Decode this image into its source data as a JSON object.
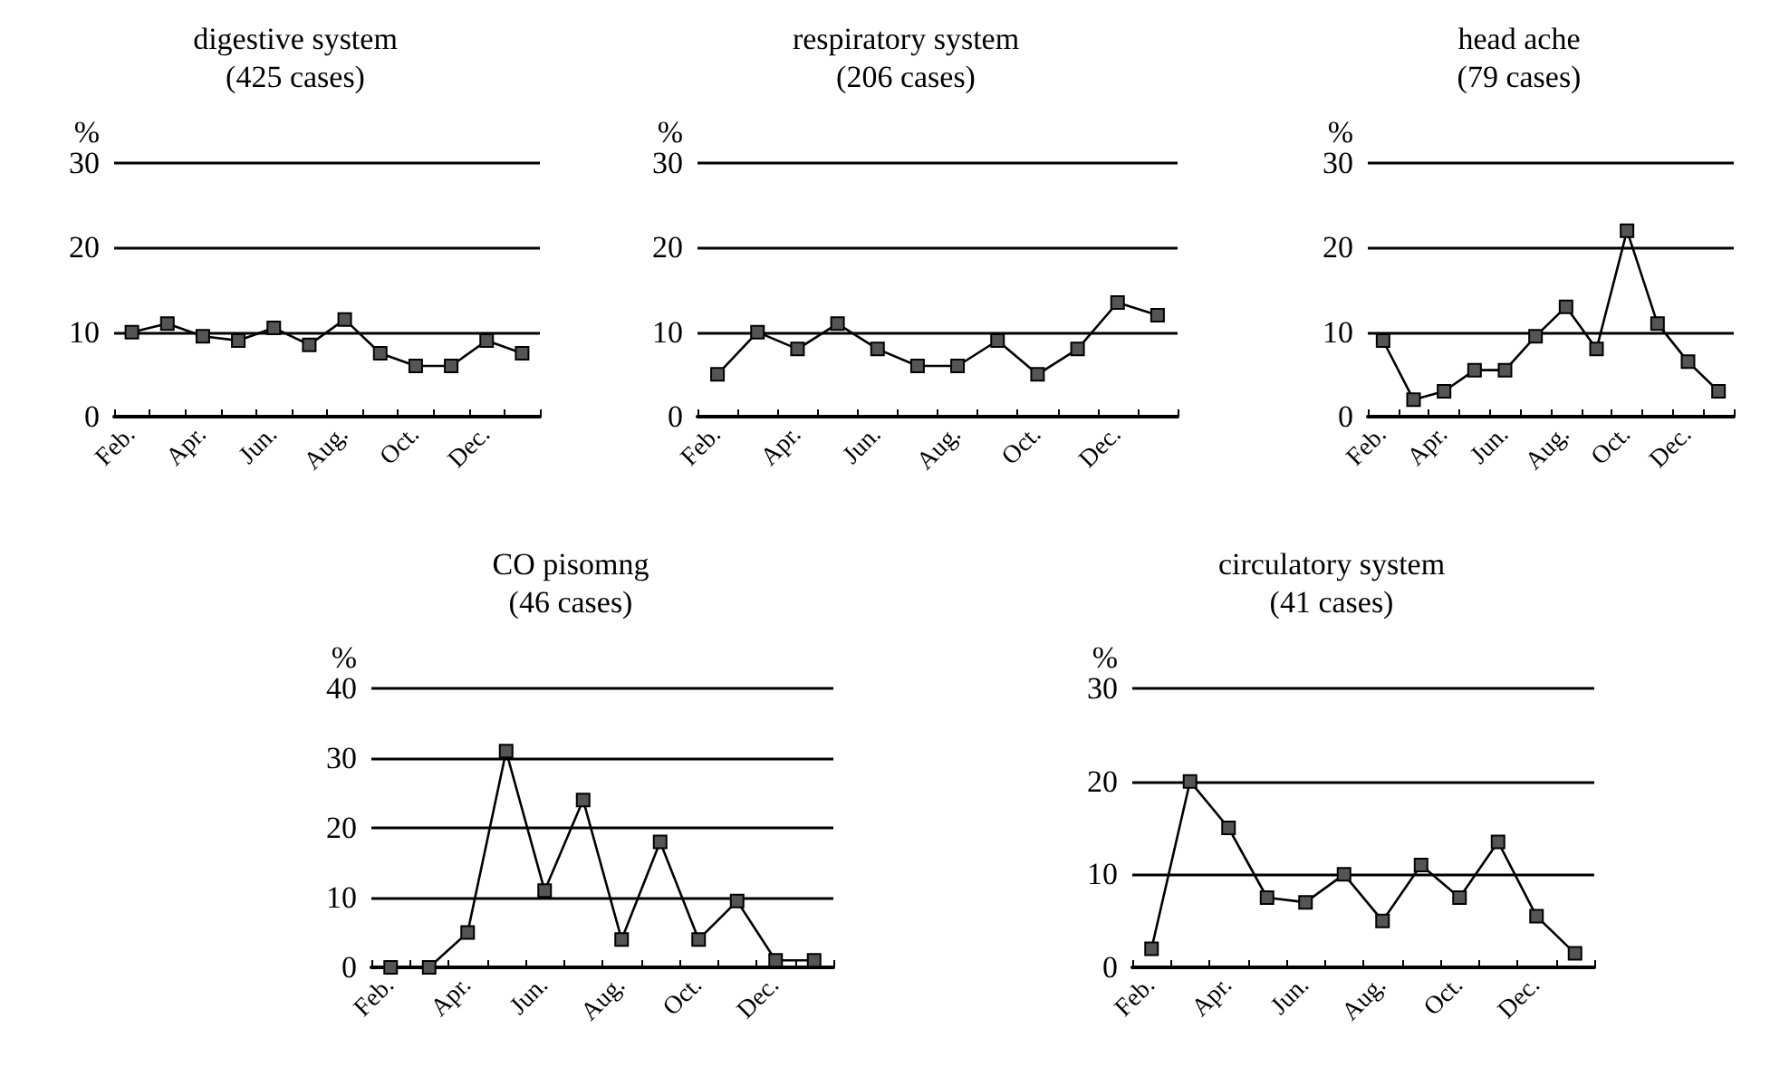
{
  "chart_data": [
    {
      "type": "line",
      "title": "digestive system",
      "subtitle": "(425 cases)",
      "ylabel": "%",
      "categories": [
        "Feb.",
        null,
        "Apr.",
        null,
        "Jun.",
        null,
        "Aug.",
        null,
        "Oct.",
        null,
        "Dec.",
        null
      ],
      "values": [
        10,
        11,
        9.5,
        9,
        10.5,
        8.5,
        11.5,
        7.5,
        6,
        6,
        9,
        7.5
      ],
      "color": "#000000",
      "ylim": [
        0,
        30
      ],
      "yticks": [
        0,
        10,
        20,
        30
      ],
      "grid": "y",
      "marker": "square",
      "line_style": "solid"
    },
    {
      "type": "line",
      "title": "respiratory system",
      "subtitle": "(206 cases)",
      "ylabel": "%",
      "categories": [
        "Feb.",
        null,
        "Apr.",
        null,
        "Jun.",
        null,
        "Aug.",
        null,
        "Oct.",
        null,
        "Dec.",
        null
      ],
      "values": [
        5,
        10,
        8,
        11,
        8,
        6,
        6,
        9,
        5,
        8,
        13.5,
        12
      ],
      "color": "#000000",
      "ylim": [
        0,
        30
      ],
      "yticks": [
        0,
        10,
        20,
        30
      ],
      "grid": "y",
      "marker": "square",
      "line_style": "solid"
    },
    {
      "type": "line",
      "title": "head ache",
      "subtitle": "(79 cases)",
      "ylabel": "%",
      "categories": [
        "Feb.",
        null,
        "Apr.",
        null,
        "Jun.",
        null,
        "Aug.",
        null,
        "Oct.",
        null,
        "Dec.",
        null
      ],
      "values": [
        9,
        2,
        3,
        5.5,
        5.5,
        9.5,
        13,
        8,
        22,
        11,
        6.5,
        3
      ],
      "color": "#000000",
      "ylim": [
        0,
        30
      ],
      "yticks": [
        0,
        10,
        20,
        30
      ],
      "grid": "y",
      "marker": "square",
      "line_style": "solid"
    },
    {
      "type": "line",
      "title": "CO pisomng",
      "subtitle": "(46 cases)",
      "ylabel": "%",
      "categories": [
        "Feb.",
        null,
        "Apr.",
        null,
        "Jun.",
        null,
        "Aug.",
        null,
        "Oct.",
        null,
        "Dec.",
        null
      ],
      "values": [
        0,
        0,
        5,
        31,
        11,
        24,
        4,
        18,
        4,
        9.5,
        1,
        1
      ],
      "color": "#000000",
      "ylim": [
        0,
        40
      ],
      "yticks": [
        0,
        10,
        20,
        30,
        40
      ],
      "grid": "y",
      "marker": "square",
      "line_style": "solid"
    },
    {
      "type": "line",
      "title": "circulatory system",
      "subtitle": "(41 cases)",
      "ylabel": "%",
      "categories": [
        "Feb.",
        null,
        "Apr.",
        null,
        "Jun.",
        null,
        "Aug.",
        null,
        "Oct.",
        null,
        "Dec.",
        null
      ],
      "values": [
        2,
        20,
        15,
        7.5,
        7,
        10,
        5,
        11,
        7.5,
        13.5,
        5.5,
        1.5
      ],
      "color": "#000000",
      "ylim": [
        0,
        30
      ],
      "yticks": [
        0,
        10,
        20,
        30
      ],
      "grid": "y",
      "marker": "square",
      "line_style": "solid"
    }
  ]
}
